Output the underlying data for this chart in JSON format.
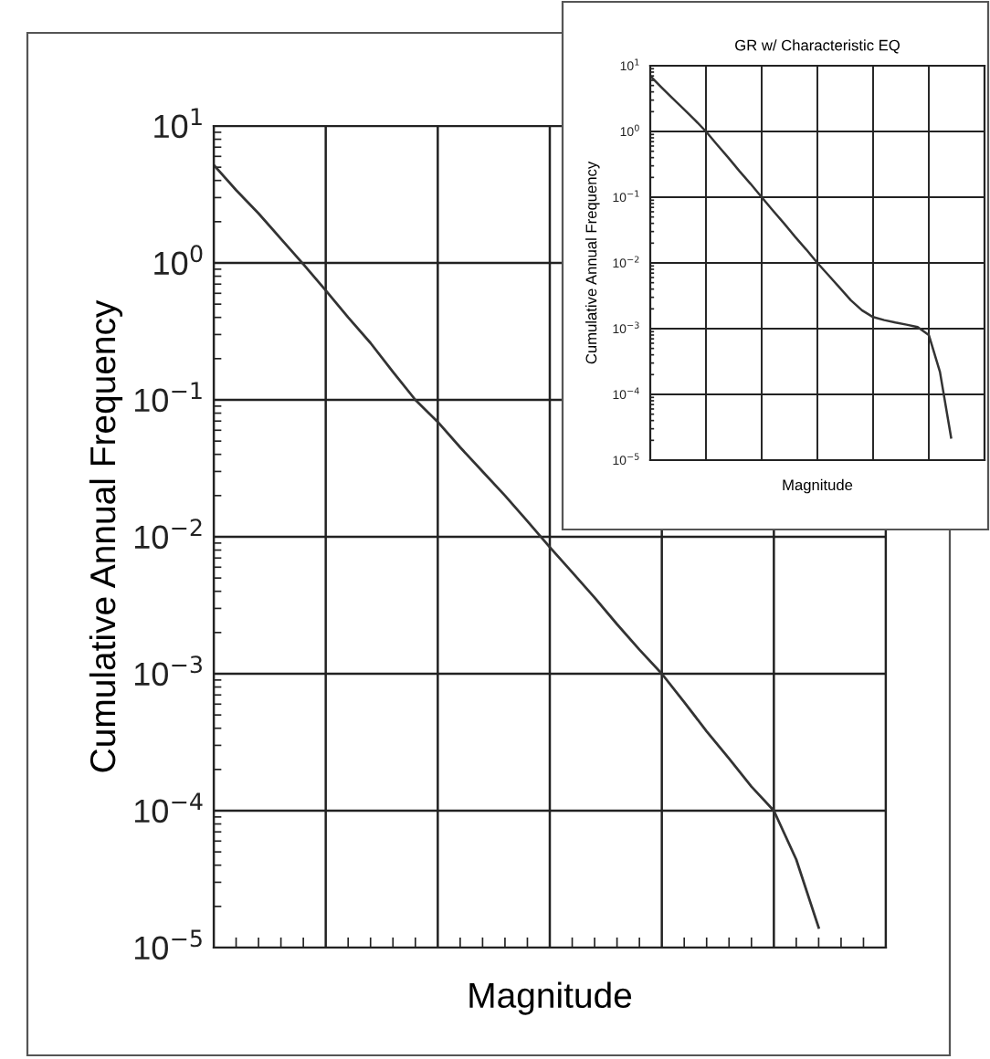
{
  "chart_data": [
    {
      "type": "line",
      "xlabel": "Magnitude",
      "ylabel": "Cumulative Annual Frequency",
      "log": "y",
      "grid": true,
      "marker": "none",
      "line_style": "solid",
      "tick_labels": "y",
      "categories": [
        null,
        null,
        null,
        null,
        null,
        null,
        null,
        null,
        null,
        null,
        null,
        null,
        null,
        null,
        null,
        null,
        null,
        null,
        null,
        null,
        null,
        null,
        null,
        null,
        null,
        null,
        null,
        null,
        null,
        null,
        null
      ],
      "ylim": [
        1e-05,
        10
      ],
      "yticks": [
        {
          "value": 10,
          "label": "10$^{1}$"
        },
        {
          "value": 1,
          "label": "10$^{0}$"
        },
        {
          "value": 0.1,
          "label": "10$^{−1}$"
        },
        {
          "value": 0.01,
          "label": "10$^{−2}$"
        },
        {
          "value": 0.001,
          "label": "10$^{−3}$"
        },
        {
          "value": 0.0001,
          "label": "10$^{−4}$"
        },
        {
          "value": 1e-05,
          "label": "10$^{−5}$"
        }
      ],
      "series": [
        {
          "color": "#333333",
          "values": [
            5.2,
            3.4,
            2.3,
            1.5,
            0.98,
            0.63,
            0.4,
            0.26,
            0.16,
            0.1,
            0.069,
            0.045,
            0.03,
            0.02,
            0.013,
            0.0084,
            0.0055,
            0.0036,
            0.0023,
            0.0015,
            0.001,
            0.00062,
            0.00038,
            0.00024,
            0.00015,
            0.0001,
            4.4e-05,
            1.4e-05,
            null,
            null,
            null
          ]
        }
      ]
    },
    {
      "type": "line",
      "title": "GR w/ Characteristic EQ",
      "xlabel": "Magnitude",
      "ylabel": "Cumulative Annual Frequency",
      "log": "y",
      "grid": true,
      "marker": "none",
      "line_style": "solid",
      "tick_labels": "y",
      "categories": [
        null,
        null,
        null,
        null,
        null,
        null,
        null,
        null,
        null,
        null,
        null,
        null,
        null,
        null,
        null,
        null,
        null,
        null,
        null,
        null,
        null,
        null,
        null,
        null,
        null,
        null,
        null,
        null,
        null,
        null,
        null
      ],
      "ylim": [
        1e-05,
        10
      ],
      "yticks": [
        {
          "value": 10,
          "label": "10$^{1}$"
        },
        {
          "value": 1,
          "label": "10$^{0}$"
        },
        {
          "value": 0.1,
          "label": "10$^{−1}$"
        },
        {
          "value": 0.01,
          "label": "10$^{−2}$"
        },
        {
          "value": 0.001,
          "label": "10$^{−3}$"
        },
        {
          "value": 0.0001,
          "label": "10$^{−4}$"
        },
        {
          "value": 1e-05,
          "label": "10$^{−5}$"
        }
      ],
      "series": [
        {
          "color": "#333333",
          "values": [
            7,
            4.7,
            3.2,
            2.2,
            1.5,
            1,
            0.63,
            0.4,
            0.25,
            0.16,
            0.1,
            0.063,
            0.04,
            0.025,
            0.016,
            0.01,
            0.0065,
            0.0042,
            0.0027,
            0.0019,
            0.0015,
            0.00135,
            0.00124,
            0.00115,
            0.00106,
            0.0008,
            0.00022,
            2.2e-05,
            null,
            null,
            null
          ]
        }
      ]
    }
  ]
}
